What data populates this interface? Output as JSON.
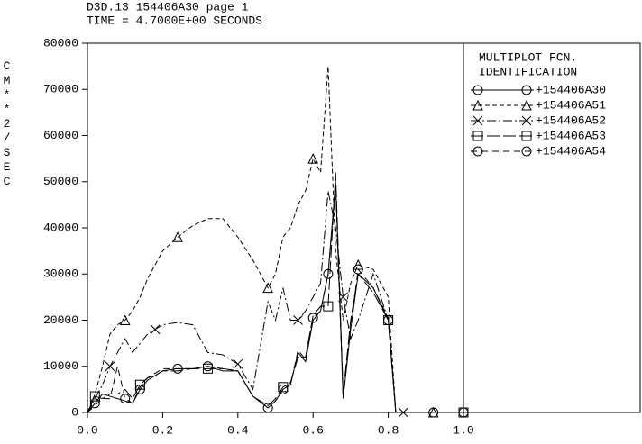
{
  "chart_data": {
    "type": "line",
    "title": "D3D.13 154406A30 page 1",
    "subtitle": "TIME = 4.7000E+00 SECONDS",
    "y_label": "CM**2/SEC",
    "legend_title": [
      "MULTIPLOT FCN.",
      "IDENTIFICATION"
    ],
    "x": [
      0,
      0.02,
      0.04,
      0.06,
      0.08,
      0.1,
      0.12,
      0.14,
      0.16,
      0.18,
      0.2,
      0.24,
      0.28,
      0.32,
      0.36,
      0.4,
      0.44,
      0.48,
      0.5,
      0.52,
      0.54,
      0.56,
      0.58,
      0.6,
      0.62,
      0.64,
      0.66,
      0.68,
      0.7,
      0.72,
      0.76,
      0.8,
      0.82,
      0.84,
      0.88,
      0.92,
      0.96,
      1.0
    ],
    "series": [
      {
        "name": "+154406A30",
        "color": "#000000",
        "dash": "none",
        "marker": "circle",
        "values": [
          0,
          2000,
          4000,
          3500,
          3000,
          2500,
          2000,
          5000,
          7000,
          8000,
          9000,
          9500,
          9500,
          10000,
          9000,
          9000,
          3500,
          1000,
          2500,
          5000,
          6000,
          13000,
          11000,
          20000,
          22000,
          30000,
          50000,
          3000,
          18000,
          30000,
          27000,
          20000,
          0,
          0,
          0,
          0,
          0,
          0
        ]
      },
      {
        "name": "+154406A51",
        "color": "#000000",
        "dash": "5,3",
        "marker": "triangle",
        "values": [
          0,
          4000,
          10000,
          17000,
          19000,
          20000,
          22000,
          25000,
          29000,
          32000,
          35000,
          38000,
          40500,
          42000,
          42000,
          38000,
          33000,
          27000,
          30000,
          38000,
          40000,
          45000,
          48000,
          55000,
          52000,
          75000,
          35000,
          20000,
          28000,
          32000,
          31000,
          25000,
          0,
          0,
          0,
          0,
          0,
          0
        ]
      },
      {
        "name": "+154406A52",
        "color": "#000000",
        "dash": "10,3,2,3",
        "marker": "x",
        "values": [
          0,
          3000,
          6000,
          10000,
          13000,
          16000,
          13000,
          15000,
          17000,
          18000,
          19000,
          19500,
          19000,
          13000,
          12500,
          10500,
          5000,
          24000,
          20000,
          27000,
          20000,
          20000,
          22000,
          25000,
          28000,
          48000,
          40000,
          25000,
          16000,
          20000,
          30000,
          20000,
          0,
          0,
          0,
          0,
          0,
          0
        ]
      },
      {
        "name": "+154406A53",
        "color": "#000000",
        "dash": "14,4",
        "marker": "square",
        "values": [
          0,
          3500,
          3000,
          4000,
          4000,
          5000,
          3000,
          6000,
          7500,
          8000,
          9000,
          9000,
          9500,
          9500,
          9500,
          9000,
          3500,
          1500,
          3000,
          5500,
          6500,
          12000,
          12000,
          21000,
          23000,
          23000,
          52000,
          4000,
          20000,
          30000,
          26000,
          20000,
          0,
          0,
          0,
          0,
          0,
          0
        ]
      },
      {
        "name": "+154406A54",
        "color": "#000000",
        "dash": "7,5",
        "marker": "circle",
        "values": [
          0,
          1500,
          3000,
          3000,
          10000,
          3000,
          2000,
          5500,
          7500,
          8500,
          9500,
          9500,
          9500,
          10000,
          9500,
          9000,
          3500,
          1000,
          2500,
          5000,
          6000,
          13500,
          11500,
          20500,
          22000,
          30000,
          49000,
          3000,
          18500,
          31000,
          27000,
          20500,
          0,
          0,
          0,
          0,
          0,
          0
        ]
      }
    ],
    "xlim": [
      0,
      1.0
    ],
    "xticks": [
      {
        "value": 0,
        "label": "0.0"
      },
      0.2,
      0.4,
      0.6,
      0.8,
      {
        "value": 1.0,
        "label": "1.0"
      }
    ],
    "ylim": [
      0,
      80000
    ],
    "yticks": [
      0,
      10000,
      20000,
      30000,
      40000,
      50000,
      60000,
      70000,
      80000
    ],
    "grid": false
  }
}
